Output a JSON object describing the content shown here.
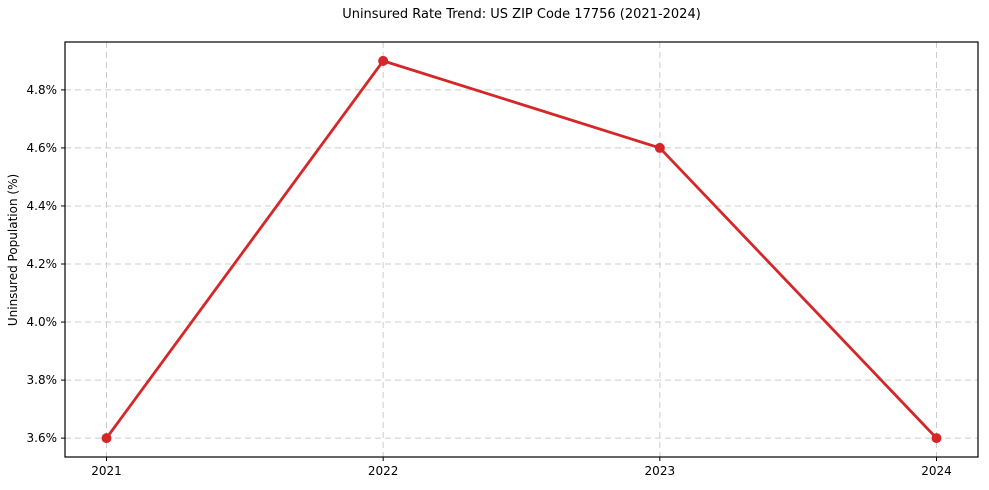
{
  "chart_data": {
    "type": "line",
    "title": "Uninsured Rate Trend: US ZIP Code 17756 (2021-2024)",
    "xlabel": "",
    "ylabel": "Uninsured Population (%)",
    "x": [
      2021,
      2022,
      2023,
      2024
    ],
    "x_tick_labels": [
      "2021",
      "2022",
      "2023",
      "2024"
    ],
    "values": [
      3.6,
      4.9,
      4.6,
      3.6
    ],
    "y_tick_values": [
      3.6,
      3.8,
      4.0,
      4.2,
      4.4,
      4.6,
      4.8
    ],
    "y_tick_labels": [
      "3.6%",
      "3.8%",
      "4.0%",
      "4.2%",
      "4.4%",
      "4.6%",
      "4.8%"
    ],
    "xlim": [
      2020.85,
      2024.15
    ],
    "ylim": [
      3.535,
      4.965
    ],
    "grid": true,
    "grid_style": "dashed",
    "legend_position": "none",
    "colors": {
      "line": "#d62728",
      "marker": "#d62728",
      "grid": "#cccccc",
      "spine": "#000000",
      "text": "#000000",
      "background": "#ffffff"
    }
  }
}
